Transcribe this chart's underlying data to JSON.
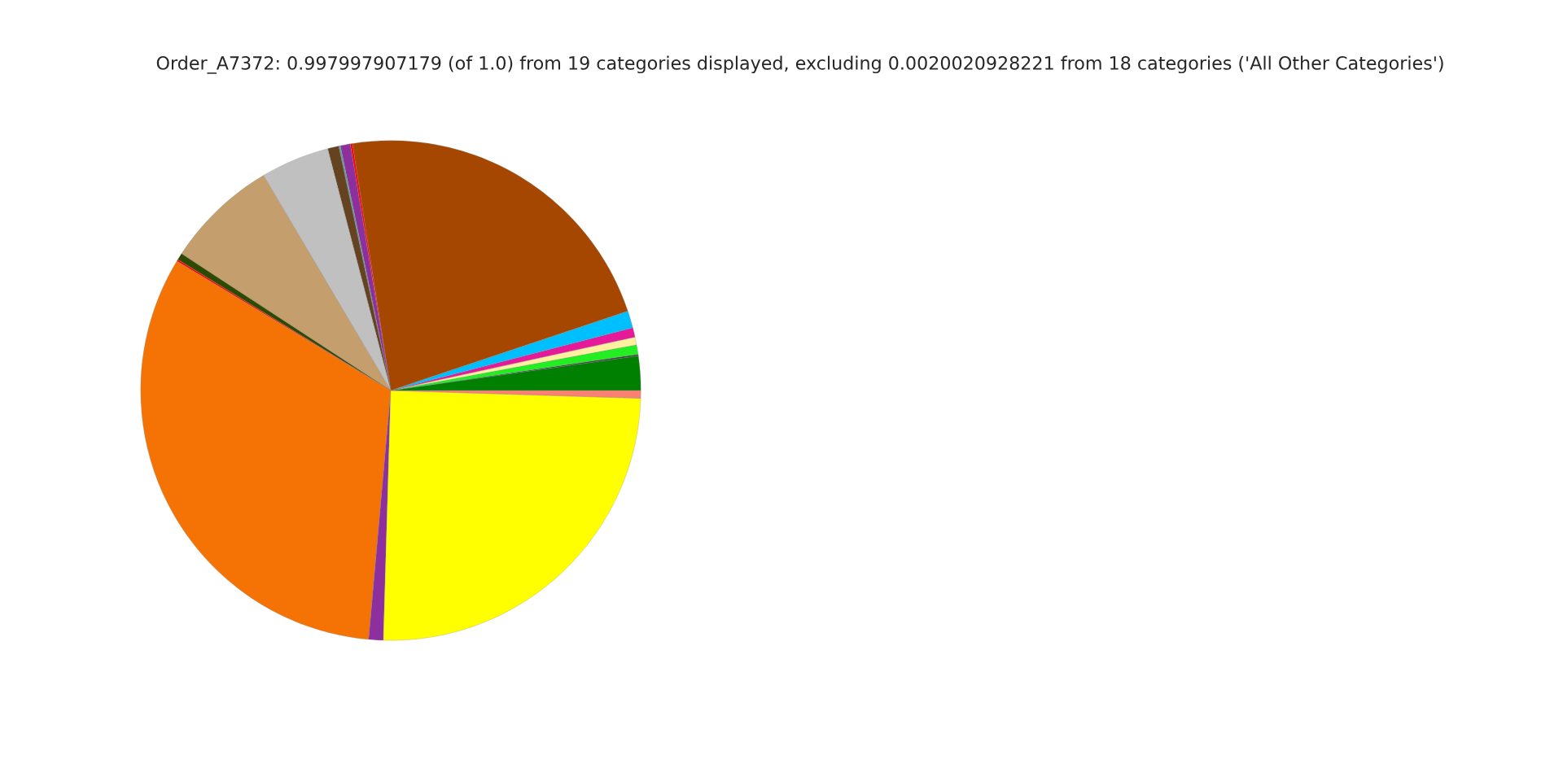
{
  "chart_data": {
    "type": "pie",
    "title": "Order_A7372: 0.997997907179 (of 1.0) from 19 categories displayed, excluding 0.0020020928221 from 18 categories ('All Other Categories')",
    "categories": [
      null,
      null,
      null,
      null,
      null,
      null,
      null,
      null,
      null,
      null,
      null,
      null,
      null,
      null,
      null,
      null,
      null,
      null,
      null
    ],
    "values": [
      2.22,
      0.1,
      0.61,
      0.5,
      0.61,
      1.11,
      22.3,
      0.14,
      0.64,
      0.11,
      0.72,
      4.44,
      7.28,
      0.44,
      0.12,
      32.25,
      0.94,
      24.97,
      0.5
    ],
    "colors": [
      "#008000",
      "#3c3c3c",
      "#22ee22",
      "#fff0a0",
      "#e6199a",
      "#00bfff",
      "#a54700",
      "#ff0000",
      "#8e2f9e",
      "#5f9ea0",
      "#654321",
      "#c0c0c0",
      "#c49e6c",
      "#2e4a00",
      "#ff0000",
      "#f47304",
      "#8e2f9e",
      "#ffff00",
      "#fa8072"
    ]
  }
}
